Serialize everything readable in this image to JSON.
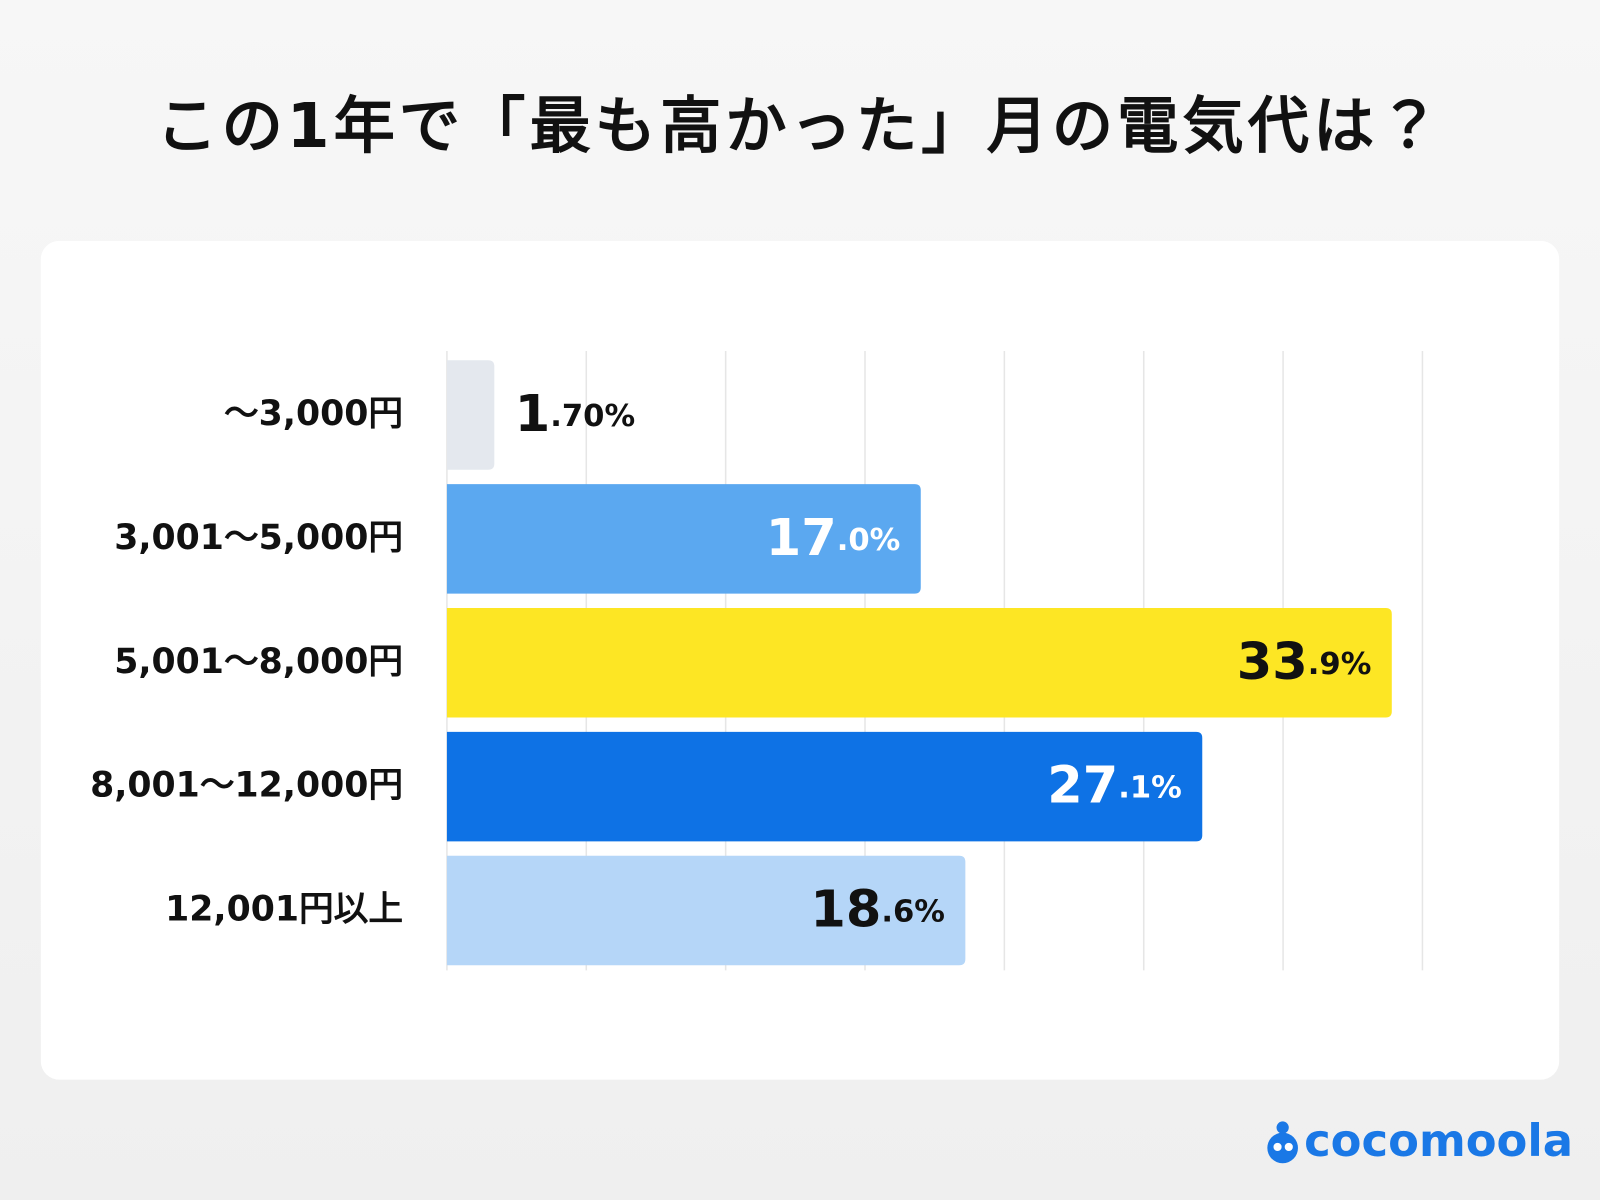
{
  "chart_data": {
    "type": "hbar",
    "title": "この1年で「最も高かった」月の電気代は？",
    "categories": [
      "〜3,000円",
      "3,001〜5,000円",
      "5,001〜8,000円",
      "8,001〜12,000円",
      "12,001円以上"
    ],
    "values": [
      1.7,
      17.0,
      33.9,
      27.1,
      18.6
    ],
    "value_labels": [
      "1.70%",
      "17.0%",
      "33.9%",
      "27.1%",
      "18.6%"
    ],
    "colors": [
      "#e4e8ee",
      "#5ba8f0",
      "#fde624",
      "#0e72e5",
      "#b5d6f8"
    ],
    "label_colors": [
      "#111111",
      "#ffffff",
      "#111111",
      "#ffffff",
      "#111111"
    ],
    "xlim": [
      0,
      35
    ],
    "xticks": [
      0,
      5,
      10,
      15,
      20,
      25,
      30,
      35
    ],
    "grid": true,
    "logo": "cocomoola"
  }
}
